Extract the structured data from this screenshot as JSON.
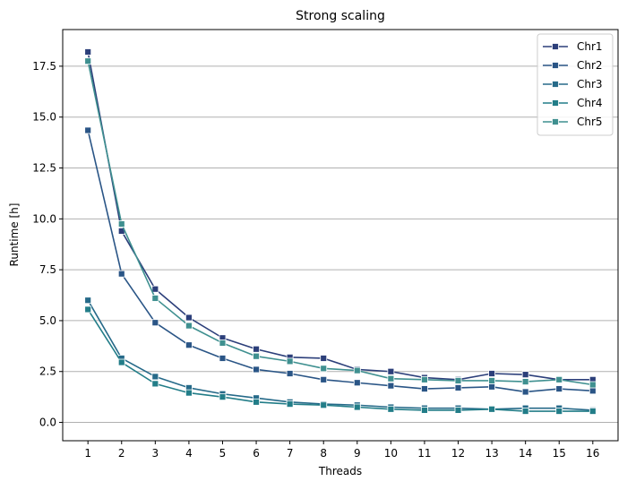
{
  "chart_data": {
    "type": "line",
    "title": "Strong scaling",
    "xlabel": "Threads",
    "ylabel": "Runtime  [h]",
    "x": [
      1,
      2,
      3,
      4,
      5,
      6,
      7,
      8,
      9,
      10,
      11,
      12,
      13,
      14,
      15,
      16
    ],
    "xlim": [
      0.25,
      16.75
    ],
    "ylim": [
      -0.9,
      19.3
    ],
    "yticks": [
      0.0,
      2.5,
      5.0,
      7.5,
      10.0,
      12.5,
      15.0,
      17.5
    ],
    "ytick_labels": [
      "0.0",
      "2.5",
      "5.0",
      "7.5",
      "10.0",
      "12.5",
      "15.0",
      "17.5"
    ],
    "xtick_labels": [
      "1",
      "2",
      "3",
      "4",
      "5",
      "6",
      "7",
      "8",
      "9",
      "10",
      "11",
      "12",
      "13",
      "14",
      "15",
      "16"
    ],
    "grid": "y",
    "legend_position": "top-right",
    "marker": "square",
    "series": [
      {
        "name": "Chr1",
        "color": "#2c3f7a",
        "values": [
          18.2,
          9.4,
          6.55,
          5.15,
          4.15,
          3.6,
          3.2,
          3.15,
          2.6,
          2.5,
          2.2,
          2.1,
          2.4,
          2.35,
          2.1,
          2.1
        ]
      },
      {
        "name": "Chr2",
        "color": "#2a5586",
        "values": [
          14.35,
          7.3,
          4.9,
          3.8,
          3.15,
          2.6,
          2.4,
          2.1,
          1.95,
          1.8,
          1.65,
          1.7,
          1.75,
          1.5,
          1.65,
          1.55
        ]
      },
      {
        "name": "Chr3",
        "color": "#266a89",
        "values": [
          6.0,
          3.15,
          2.25,
          1.7,
          1.4,
          1.2,
          1.0,
          0.9,
          0.85,
          0.75,
          0.7,
          0.7,
          0.65,
          0.7,
          0.7,
          0.6
        ]
      },
      {
        "name": "Chr4",
        "color": "#227d88",
        "values": [
          5.55,
          2.95,
          1.9,
          1.45,
          1.25,
          1.0,
          0.9,
          0.85,
          0.75,
          0.65,
          0.6,
          0.6,
          0.65,
          0.55,
          0.55,
          0.55
        ]
      },
      {
        "name": "Chr5",
        "color": "#3f9090",
        "values": [
          17.75,
          9.75,
          6.1,
          4.75,
          3.9,
          3.25,
          3.0,
          2.65,
          2.55,
          2.15,
          2.1,
          2.05,
          2.05,
          2.0,
          2.1,
          1.85
        ]
      }
    ]
  }
}
